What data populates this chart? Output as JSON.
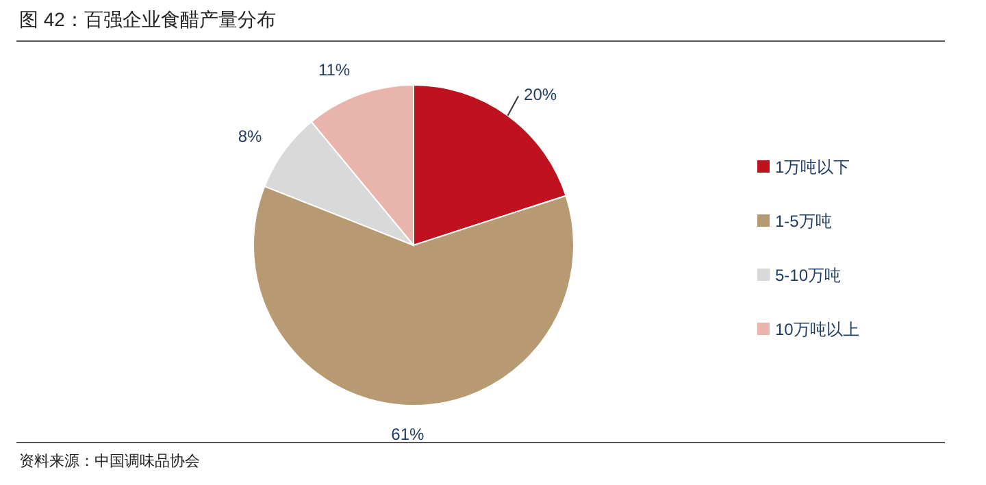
{
  "chart_data": {
    "type": "pie",
    "title": "图 42：百强企业食醋产量分布",
    "categories": [
      "1万吨以下",
      "1-5万吨",
      "5-10万吨",
      "10万吨以上"
    ],
    "values": [
      20,
      61,
      8,
      11
    ],
    "colors": [
      "#c0111f",
      "#b89a72",
      "#d9d9d9",
      "#e8b4ab"
    ],
    "value_labels": [
      "20%",
      "61%",
      "8%",
      "11%"
    ],
    "legend": "right",
    "annotations": [
      "资料来源：中国调味品协会"
    ]
  }
}
